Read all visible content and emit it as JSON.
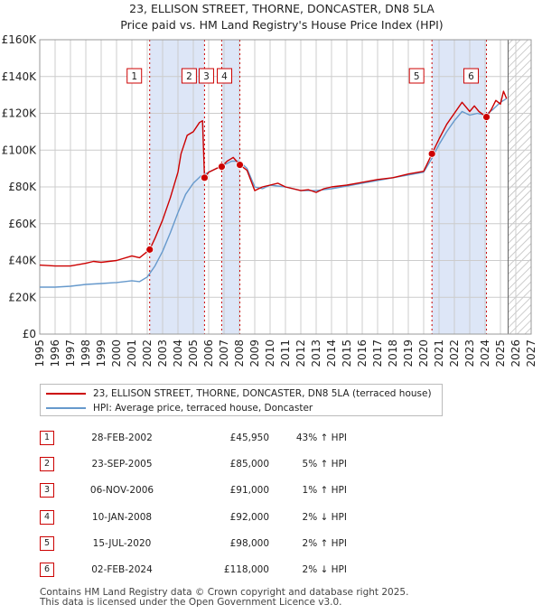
{
  "title": {
    "line1": "23, ELLISON STREET, THORNE, DONCASTER, DN8 5LA",
    "line2": "Price paid vs. HM Land Registry's House Price Index (HPI)"
  },
  "colors": {
    "property": "#cc0000",
    "hpi": "#6699cc",
    "shade": "#dde6f7",
    "grid": "#cccccc"
  },
  "chart_data": {
    "type": "line",
    "title": "23, ELLISON STREET, THORNE, DONCASTER, DN8 5LA — Price paid vs. HM Land Registry's House Price Index (HPI)",
    "xlim": [
      1995,
      2027
    ],
    "ylim": [
      0,
      160000
    ],
    "x_ticks": [
      "1995",
      "1996",
      "1997",
      "1998",
      "1999",
      "2000",
      "2001",
      "2002",
      "2003",
      "2004",
      "2005",
      "2006",
      "2007",
      "2008",
      "2009",
      "2010",
      "2011",
      "2012",
      "2013",
      "2014",
      "2015",
      "2016",
      "2017",
      "2018",
      "2019",
      "2020",
      "2021",
      "2022",
      "2023",
      "2024",
      "2025",
      "2026",
      "2027"
    ],
    "y_ticks": [
      {
        "value": 0,
        "label": "£0"
      },
      {
        "value": 20000,
        "label": "£20K"
      },
      {
        "value": 40000,
        "label": "£40K"
      },
      {
        "value": 60000,
        "label": "£60K"
      },
      {
        "value": 80000,
        "label": "£80K"
      },
      {
        "value": 100000,
        "label": "£100K"
      },
      {
        "value": 120000,
        "label": "£120K"
      },
      {
        "value": 140000,
        "label": "£140K"
      },
      {
        "value": 160000,
        "label": "£160K"
      }
    ],
    "future_from": 2025.5,
    "shaded_spans": [
      [
        2002.16,
        2005.73
      ],
      [
        2006.85,
        2008.03
      ],
      [
        2020.54,
        2024.09
      ]
    ],
    "series": [
      {
        "name": "23, ELLISON STREET, THORNE, DONCASTER, DN8 5LA (terraced house)",
        "color": "#cc0000",
        "x": [
          1995.0,
          1996.0,
          1997.0,
          1998.0,
          1998.5,
          1999.0,
          2000.0,
          2001.0,
          2001.5,
          2002.16,
          2002.5,
          2003.0,
          2003.5,
          2004.0,
          2004.2,
          2004.6,
          2005.0,
          2005.4,
          2005.6,
          2005.73,
          2006.0,
          2006.5,
          2006.85,
          2007.2,
          2007.6,
          2008.03,
          2008.5,
          2009.0,
          2009.5,
          2010.0,
          2010.5,
          2011.0,
          2011.5,
          2012.0,
          2012.5,
          2013.0,
          2013.5,
          2014.0,
          2015.0,
          2016.0,
          2017.0,
          2018.0,
          2019.0,
          2020.0,
          2020.54,
          2021.0,
          2021.5,
          2022.0,
          2022.5,
          2023.0,
          2023.3,
          2023.6,
          2024.09,
          2024.4,
          2024.7,
          2025.0,
          2025.2,
          2025.4
        ],
        "values": [
          37500,
          37000,
          37000,
          38500,
          39500,
          39000,
          40000,
          42500,
          41500,
          45950,
          52000,
          62000,
          74000,
          88000,
          98000,
          108000,
          110000,
          115000,
          116000,
          85000,
          88000,
          90000,
          91000,
          94000,
          96000,
          92000,
          89000,
          78000,
          80000,
          81000,
          82000,
          80000,
          79000,
          78000,
          78500,
          77000,
          79000,
          80000,
          81000,
          82500,
          84000,
          85000,
          87000,
          88500,
          98000,
          106000,
          114000,
          120000,
          126000,
          121000,
          124000,
          121000,
          118000,
          122000,
          127000,
          125000,
          132000,
          128000
        ]
      },
      {
        "name": "HPI: Average price, terraced house, Doncaster",
        "color": "#6699cc",
        "x": [
          1995.0,
          1996.0,
          1997.0,
          1998.0,
          1999.0,
          2000.0,
          2001.0,
          2001.5,
          2002.0,
          2002.5,
          2003.0,
          2003.5,
          2004.0,
          2004.5,
          2005.0,
          2005.5,
          2006.0,
          2006.5,
          2007.0,
          2007.5,
          2008.0,
          2008.5,
          2009.0,
          2009.5,
          2010.0,
          2011.0,
          2012.0,
          2013.0,
          2014.0,
          2015.0,
          2016.0,
          2017.0,
          2018.0,
          2019.0,
          2020.0,
          2020.5,
          2021.0,
          2021.5,
          2022.0,
          2022.5,
          2023.0,
          2023.5,
          2024.0,
          2024.5,
          2025.0,
          2025.4
        ],
        "values": [
          25500,
          25500,
          26000,
          27000,
          27500,
          28000,
          29000,
          28500,
          31000,
          37000,
          45000,
          55000,
          66000,
          76000,
          82000,
          86000,
          88000,
          90000,
          92000,
          94000,
          94000,
          90000,
          80000,
          79000,
          81000,
          80000,
          78000,
          78000,
          79000,
          80500,
          82000,
          83500,
          85000,
          86500,
          88000,
          95000,
          103000,
          110000,
          116000,
          121000,
          119000,
          120000,
          119000,
          122000,
          126000,
          128000
        ]
      }
    ],
    "sales": [
      {
        "label": "1",
        "date": "28-FEB-2002",
        "x": 2002.16,
        "price": 45950,
        "hpi": "43% ↑ HPI"
      },
      {
        "label": "2",
        "date": "23-SEP-2005",
        "x": 2005.73,
        "price": 85000,
        "hpi": "5% ↑ HPI"
      },
      {
        "label": "3",
        "date": "06-NOV-2006",
        "x": 2006.85,
        "price": 91000,
        "hpi": "1% ↑ HPI"
      },
      {
        "label": "4",
        "date": "10-JAN-2008",
        "x": 2008.03,
        "price": 92000,
        "hpi": "2% ↓ HPI"
      },
      {
        "label": "5",
        "date": "15-JUL-2020",
        "x": 2020.54,
        "price": 98000,
        "hpi": "2% ↑ HPI"
      },
      {
        "label": "6",
        "date": "02-FEB-2024",
        "x": 2024.09,
        "price": 118000,
        "hpi": "2% ↓ HPI"
      }
    ]
  },
  "legend": {
    "property": "23, ELLISON STREET, THORNE, DONCASTER, DN8 5LA (terraced house)",
    "hpi": "HPI: Average price, terraced house, Doncaster"
  },
  "transactions": [
    {
      "num": "1",
      "date": "28-FEB-2002",
      "price": "£45,950",
      "hpi": "43% ↑ HPI"
    },
    {
      "num": "2",
      "date": "23-SEP-2005",
      "price": "£85,000",
      "hpi": "5% ↑ HPI"
    },
    {
      "num": "3",
      "date": "06-NOV-2006",
      "price": "£91,000",
      "hpi": "1% ↑ HPI"
    },
    {
      "num": "4",
      "date": "10-JAN-2008",
      "price": "£92,000",
      "hpi": "2% ↓ HPI"
    },
    {
      "num": "5",
      "date": "15-JUL-2020",
      "price": "£98,000",
      "hpi": "2% ↑ HPI"
    },
    {
      "num": "6",
      "date": "02-FEB-2024",
      "price": "£118,000",
      "hpi": "2% ↓ HPI"
    }
  ],
  "footer": {
    "line1": "Contains HM Land Registry data © Crown copyright and database right 2025.",
    "line2": "This data is licensed under the Open Government Licence v3.0."
  }
}
